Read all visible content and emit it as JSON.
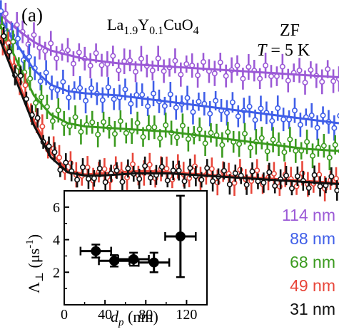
{
  "panel_label": "(a)",
  "formula": {
    "base": "La",
    "sub1": "1.9",
    "mid": "Y",
    "sub2": "0.1",
    "tail": "CuO",
    "sub3": "4"
  },
  "field": "ZF",
  "temperature": {
    "symbol": "T",
    "value": "= 5 K"
  },
  "chart_data": [
    {
      "type": "scatter",
      "description_free": true,
      "series": [
        {
          "name": "114 nm",
          "color": "#9b59d6",
          "x": [
            0.0,
            0.15,
            0.3,
            0.45,
            0.6,
            0.75,
            0.9,
            1.05,
            1.2,
            1.35,
            1.5,
            1.65,
            1.8,
            1.95,
            2.1,
            2.25,
            2.4,
            2.55,
            2.7,
            2.85,
            3.0
          ],
          "y": [
            1.0,
            0.93,
            0.87,
            0.83,
            0.81,
            0.79,
            0.78,
            0.77,
            0.765,
            0.76,
            0.755,
            0.75,
            0.745,
            0.74,
            0.735,
            0.73,
            0.725,
            0.72,
            0.715,
            0.71,
            0.705
          ],
          "err": 0.05
        },
        {
          "name": "88 nm",
          "color": "#3f5ee8",
          "x": [
            0.0,
            0.15,
            0.3,
            0.45,
            0.6,
            0.75,
            0.9,
            1.05,
            1.2,
            1.35,
            1.5,
            1.65,
            1.8,
            1.95,
            2.1,
            2.25,
            2.4,
            2.55,
            2.7,
            2.85,
            3.0
          ],
          "y": [
            0.98,
            0.86,
            0.74,
            0.67,
            0.64,
            0.63,
            0.625,
            0.62,
            0.61,
            0.6,
            0.59,
            0.58,
            0.57,
            0.56,
            0.55,
            0.54,
            0.53,
            0.52,
            0.51,
            0.5,
            0.49
          ],
          "err": 0.05
        },
        {
          "name": "68 nm",
          "color": "#3a9a1e",
          "x": [
            0.0,
            0.15,
            0.3,
            0.45,
            0.6,
            0.75,
            0.9,
            1.05,
            1.2,
            1.35,
            1.5,
            1.65,
            1.8,
            1.95,
            2.1,
            2.25,
            2.4,
            2.55,
            2.7,
            2.85,
            3.0
          ],
          "y": [
            0.95,
            0.78,
            0.62,
            0.53,
            0.49,
            0.475,
            0.47,
            0.465,
            0.46,
            0.455,
            0.45,
            0.44,
            0.43,
            0.42,
            0.41,
            0.4,
            0.39,
            0.38,
            0.37,
            0.365,
            0.36
          ],
          "err": 0.05
        },
        {
          "name": "49 nm",
          "color": "#e8463a",
          "x": [
            0.0,
            0.15,
            0.3,
            0.45,
            0.6,
            0.75,
            0.9,
            1.05,
            1.2,
            1.35,
            1.5,
            1.65,
            1.8,
            1.95,
            2.1,
            2.25,
            2.4,
            2.55,
            2.7,
            2.85,
            3.0
          ],
          "y": [
            0.9,
            0.7,
            0.5,
            0.35,
            0.27,
            0.25,
            0.255,
            0.26,
            0.265,
            0.265,
            0.26,
            0.255,
            0.25,
            0.245,
            0.24,
            0.235,
            0.23,
            0.225,
            0.22,
            0.215,
            0.21
          ],
          "err": 0.05
        },
        {
          "name": "31 nm",
          "color": "#111111",
          "x": [
            0.0,
            0.15,
            0.3,
            0.45,
            0.6,
            0.75,
            0.9,
            1.05,
            1.2,
            1.35,
            1.5,
            1.65,
            1.8,
            1.95,
            2.1,
            2.25,
            2.4,
            2.55,
            2.7,
            2.85,
            3.0
          ],
          "y": [
            0.88,
            0.68,
            0.48,
            0.33,
            0.26,
            0.245,
            0.245,
            0.25,
            0.255,
            0.255,
            0.255,
            0.25,
            0.245,
            0.24,
            0.235,
            0.23,
            0.225,
            0.22,
            0.215,
            0.21,
            0.205
          ],
          "err": 0.04
        }
      ]
    },
    {
      "type": "scatter",
      "xlabel": {
        "symbol": "d",
        "sub": "p",
        "unit": "(nm)"
      },
      "ylabel": {
        "symbol": "Λ",
        "sub": "⊥",
        "unit": "(μs",
        "exp": "-1",
        "close": ")"
      },
      "xlim": [
        0,
        140
      ],
      "ylim": [
        0,
        7
      ],
      "xticks": [
        0,
        40,
        80,
        120
      ],
      "yticks": [
        2,
        4,
        6
      ],
      "points": [
        {
          "x": 31,
          "y": 3.3,
          "xerr": 15,
          "yerr": 0.4
        },
        {
          "x": 49,
          "y": 2.7,
          "xerr": 15,
          "yerr": 0.35
        },
        {
          "x": 68,
          "y": 2.8,
          "xerr": 15,
          "yerr": 0.4
        },
        {
          "x": 88,
          "y": 2.6,
          "xerr": 15,
          "yerr": 0.6
        },
        {
          "x": 114,
          "y": 4.2,
          "xerr": 15,
          "yerr": 2.5
        }
      ]
    }
  ]
}
